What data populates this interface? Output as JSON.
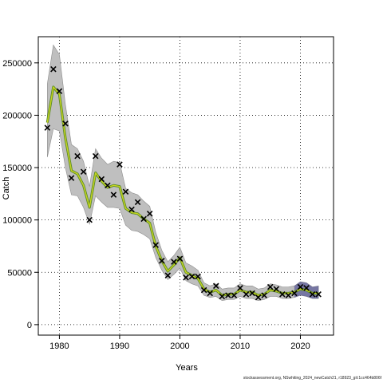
{
  "chart_data": {
    "type": "line",
    "xlabel": "Years",
    "ylabel": "Catch",
    "xlim": [
      1976.5,
      2025.5
    ],
    "ylim": [
      -10000,
      275000
    ],
    "x_ticks": [
      1980,
      1990,
      2000,
      2010,
      2020
    ],
    "y_ticks": [
      0,
      50000,
      100000,
      150000,
      200000,
      250000
    ],
    "x_tick_labels": [
      "1980",
      "1990",
      "2000",
      "2010",
      "2020"
    ],
    "y_tick_labels": [
      "0",
      "50000",
      "100000",
      "150000",
      "200000",
      "250000"
    ],
    "grid": true,
    "colors": {
      "band": "#bfbfbf",
      "band_edge": "#8c8c8c",
      "line_outer": "#5a8a2a",
      "line_inner": "#c8d61e",
      "recent_band": "#3a3a8c",
      "marker": "#000000"
    },
    "observed": {
      "marker": "x",
      "x": [
        1978,
        1979,
        1980,
        1981,
        1982,
        1983,
        1984,
        1985,
        1986,
        1987,
        1988,
        1989,
        1990,
        1991,
        1992,
        1993,
        1994,
        1995,
        1996,
        1997,
        1998,
        1999,
        2000,
        2001,
        2002,
        2003,
        2004,
        2005,
        2006,
        2007,
        2008,
        2009,
        2010,
        2011,
        2012,
        2013,
        2014,
        2015,
        2016,
        2017,
        2018,
        2019,
        2020,
        2021,
        2022,
        2023
      ],
      "y": [
        188000,
        244000,
        223000,
        192000,
        140000,
        161000,
        146000,
        100000,
        161000,
        139000,
        133000,
        124000,
        153000,
        127000,
        110000,
        117000,
        101000,
        106000,
        76000,
        61000,
        47000,
        60000,
        63000,
        45000,
        46000,
        46000,
        33000,
        30000,
        37000,
        27000,
        28000,
        28000,
        35000,
        29000,
        30000,
        26000,
        28000,
        36000,
        34000,
        29000,
        28000,
        30000,
        36000,
        35000,
        29000,
        29000
      ]
    },
    "fitted": {
      "x": [
        1978,
        1979,
        1980,
        1981,
        1982,
        1983,
        1984,
        1985,
        1986,
        1987,
        1988,
        1989,
        1990,
        1991,
        1992,
        1993,
        1994,
        1995,
        1996,
        1997,
        1998,
        1999,
        2000,
        2001,
        2002,
        2003,
        2004,
        2005,
        2006,
        2007,
        2008,
        2009,
        2010,
        2011,
        2012,
        2013,
        2014,
        2015,
        2016,
        2017,
        2018,
        2019,
        2020,
        2021,
        2022,
        2023
      ],
      "y": [
        193000,
        227000,
        220000,
        178000,
        147000,
        144000,
        133000,
        112000,
        145000,
        137000,
        131000,
        133000,
        132000,
        111000,
        107000,
        106000,
        101000,
        97000,
        75000,
        61000,
        51000,
        57000,
        64000,
        50000,
        47000,
        44000,
        34000,
        31000,
        33000,
        28000,
        29000,
        29000,
        33000,
        31000,
        31000,
        28000,
        29000,
        33000,
        32000,
        30000,
        30000,
        31000,
        34000,
        33000,
        30000,
        30000
      ],
      "lower": [
        160000,
        187000,
        185000,
        150000,
        124000,
        123000,
        112000,
        96000,
        123000,
        117000,
        112000,
        112000,
        111000,
        95000,
        90000,
        89000,
        86000,
        82000,
        64000,
        52000,
        43000,
        48000,
        54000,
        42000,
        39000,
        37000,
        28000,
        26000,
        27000,
        23000,
        24000,
        24000,
        27000,
        25000,
        25000,
        23000,
        24000,
        27000,
        27000,
        25000,
        25000,
        26000,
        28000,
        27000,
        25000,
        25000
      ],
      "upper": [
        230000,
        267000,
        258000,
        210000,
        172000,
        168000,
        156000,
        132000,
        168000,
        159000,
        153000,
        156000,
        155000,
        130000,
        126000,
        124000,
        118000,
        113000,
        88000,
        71000,
        60000,
        66000,
        74000,
        59000,
        56000,
        52000,
        40000,
        37000,
        39000,
        34000,
        35000,
        35000,
        39000,
        37000,
        37000,
        34000,
        35000,
        39000,
        38000,
        36000,
        36000,
        37000,
        41000,
        40000,
        36000,
        37000
      ]
    }
  },
  "footer": {
    "text": "stockassessment.org, NSwhiting_2024_newCatch21, r18923_git:1cc464b806f"
  }
}
